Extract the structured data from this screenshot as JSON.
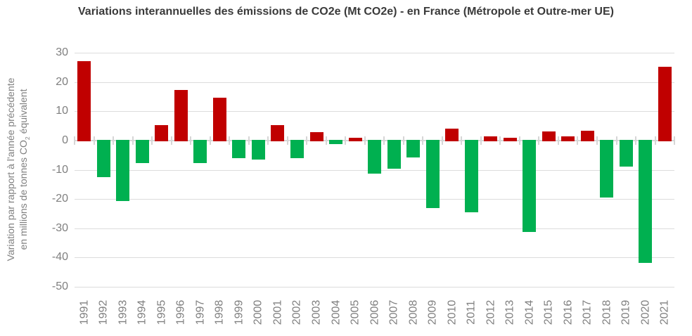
{
  "title": "Variations interannuelles des émissions de CO2e (Mt CO2e) - en France (Métropole et Outre-mer UE)",
  "y_axis_title": {
    "line1": "Variation par rapport à l'année précédente",
    "line2_pre": "en millions de tonnes CO",
    "line2_sub": "2",
    "line2_post": " équivalent"
  },
  "chart_data": {
    "type": "bar",
    "title": "Variations interannuelles des émissions de CO2e (Mt CO2e) - en France (Métropole et Outre-mer UE)",
    "xlabel": "",
    "ylabel": "Variation par rapport à l'année précédente en millions de tonnes CO2 équivalent",
    "ylim": [
      -50,
      30
    ],
    "yticks": [
      30,
      20,
      10,
      0,
      -10,
      -20,
      -30,
      -40,
      -50
    ],
    "grid": true,
    "legend": false,
    "categories": [
      "1991",
      "1992",
      "1993",
      "1994",
      "1995",
      "1996",
      "1997",
      "1998",
      "1999",
      "2000",
      "2001",
      "2002",
      "2003",
      "2004",
      "2005",
      "2006",
      "2007",
      "2008",
      "2009",
      "2010",
      "2011",
      "2012",
      "2013",
      "2014",
      "2015",
      "2016",
      "2017",
      "2018",
      "2019",
      "2020",
      "2021"
    ],
    "values": [
      27.0,
      -12.2,
      -20.4,
      -7.5,
      5.1,
      17.1,
      -7.5,
      14.5,
      -5.9,
      -6.2,
      5.0,
      -5.9,
      2.6,
      -1.1,
      0.6,
      -11.0,
      -9.3,
      -5.5,
      -22.8,
      3.8,
      -24.2,
      1.3,
      0.7,
      -31.0,
      2.9,
      1.3,
      3.1,
      -19.2,
      -8.7,
      -41.6,
      25.0
    ],
    "colors": {
      "positive": "#C00000",
      "negative": "#00B050"
    }
  },
  "style": {
    "gridline_color": "#dcdcdc",
    "axis_color": "#d6d6d6",
    "tick_label_color": "#7f7f7f",
    "title_color": "#3a3a3a"
  }
}
